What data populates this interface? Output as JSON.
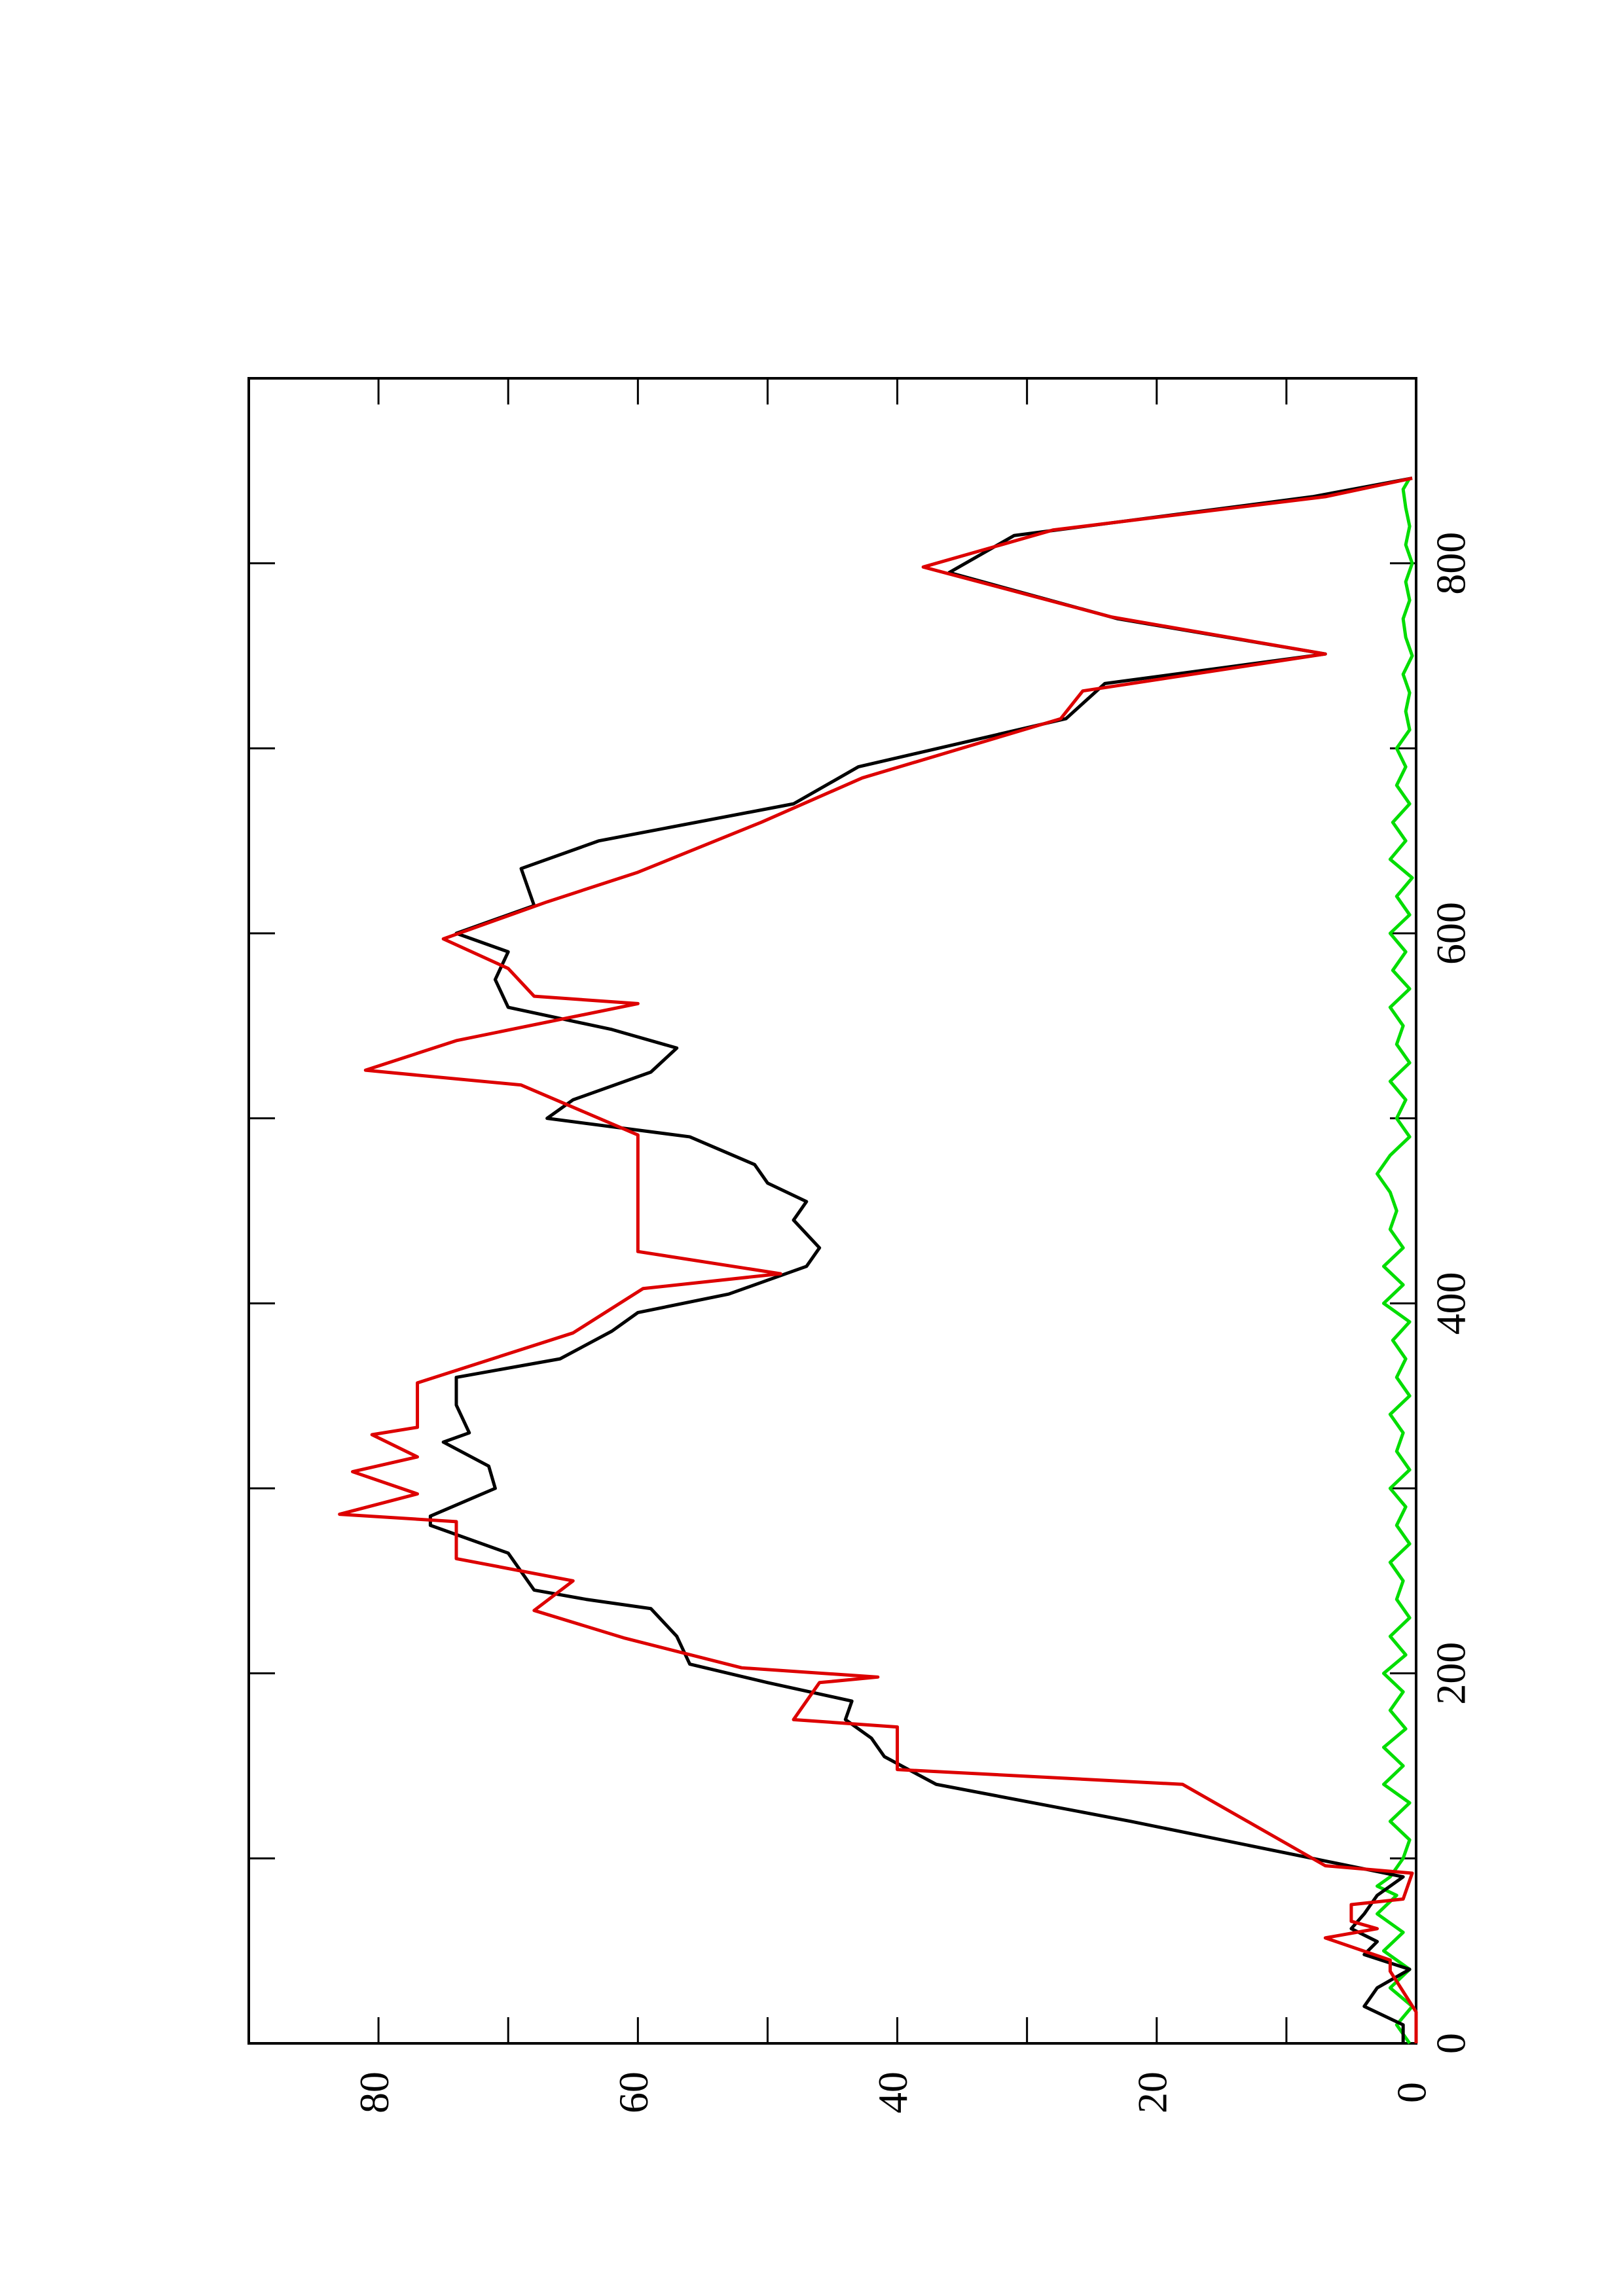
{
  "chart_data": {
    "type": "line",
    "orientation": "rotated",
    "xlim": [
      0,
      900
    ],
    "xticks": [
      0,
      200,
      400,
      600,
      800
    ],
    "xticks_minor": [
      100,
      300,
      500,
      700
    ],
    "ylim": [
      0,
      90
    ],
    "yticks": [
      0,
      20,
      40,
      60,
      80
    ],
    "yticks_minor": [
      10,
      30,
      50,
      70
    ],
    "series": [
      {
        "color": "#00dd00",
        "x": [
          0,
          10,
          20,
          30,
          40,
          50,
          60,
          70,
          80,
          85,
          90,
          100,
          110,
          120,
          130,
          140,
          150,
          160,
          170,
          180,
          190,
          200,
          210,
          220,
          230,
          240,
          250,
          260,
          270,
          280,
          290,
          300,
          310,
          320,
          330,
          340,
          350,
          360,
          370,
          380,
          390,
          400,
          410,
          420,
          430,
          440,
          450,
          460,
          470,
          480,
          490,
          500,
          510,
          520,
          530,
          540,
          550,
          560,
          570,
          580,
          590,
          600,
          610,
          620,
          630,
          640,
          650,
          660,
          670,
          680,
          690,
          700,
          710,
          720,
          730,
          740,
          750,
          760,
          770,
          780,
          790,
          800,
          810,
          820,
          830,
          840,
          846
        ],
        "values": [
          0.5,
          1.5,
          0.3,
          2,
          0.5,
          2.5,
          1,
          3,
          1.5,
          3,
          2,
          1,
          0.5,
          2,
          0.5,
          2.5,
          1,
          2.5,
          0.8,
          2,
          1,
          2.5,
          0.8,
          2,
          0.5,
          1.5,
          1,
          2,
          0.5,
          1.5,
          0.8,
          2,
          0.5,
          1.5,
          1,
          2,
          0.5,
          1.5,
          0.8,
          1.8,
          0.5,
          2.5,
          1,
          2.5,
          1,
          2,
          1.5,
          2,
          3,
          2,
          0.5,
          1.5,
          0.8,
          2,
          0.5,
          1.5,
          1,
          2,
          0.5,
          1.8,
          0.8,
          2,
          0.5,
          1.5,
          0.3,
          2,
          0.8,
          1.8,
          0.5,
          1.5,
          0.8,
          1.5,
          0.5,
          0.8,
          0.5,
          1,
          0.3,
          0.8,
          1,
          0.5,
          0.8,
          0.3,
          0.8,
          0.5,
          0.8,
          1,
          0.5
        ]
      },
      {
        "color": "#000000",
        "x": [
          0,
          10,
          20,
          30,
          40,
          48,
          55,
          62,
          70,
          80,
          90,
          100,
          120,
          140,
          155,
          165,
          175,
          185,
          195,
          205,
          220,
          235,
          240,
          245,
          265,
          280,
          285,
          300,
          312,
          325,
          330,
          345,
          360,
          370,
          385,
          395,
          405,
          420,
          430,
          445,
          455,
          465,
          475,
          490,
          500,
          510,
          525,
          538,
          548,
          560,
          575,
          590,
          600,
          615,
          635,
          650,
          670,
          690,
          716,
          735,
          751,
          770,
          795,
          815,
          836,
          846
        ],
        "values": [
          1,
          1,
          4,
          3,
          0.5,
          4,
          3,
          5,
          4,
          3,
          1,
          8,
          22,
          37,
          41,
          42,
          44,
          43.5,
          50,
          56,
          57,
          59,
          64,
          68,
          70,
          76,
          76,
          71,
          71.5,
          75,
          73,
          74,
          74,
          66,
          62,
          60,
          53,
          47,
          46,
          48,
          47,
          50,
          51,
          56,
          67,
          65,
          59,
          57,
          62,
          70,
          71,
          70,
          74,
          68,
          69,
          63,
          48,
          43,
          27,
          24,
          7,
          23,
          36,
          31,
          8,
          0.3
        ]
      },
      {
        "color": "#dd0000",
        "x": [
          0,
          17,
          39,
          45,
          57,
          62,
          66,
          75,
          78,
          88,
          92,
          96,
          140,
          148,
          171,
          175,
          195,
          198,
          203,
          219,
          234,
          250,
          262,
          282,
          286,
          297,
          309,
          317,
          329,
          333,
          357,
          384,
          408,
          416,
          428,
          491,
          518,
          526,
          542,
          562,
          566,
          581,
          597,
          617,
          633,
          660,
          684,
          716,
          731,
          751,
          771,
          798,
          818,
          836,
          846
        ],
        "values": [
          0,
          0,
          2,
          2,
          7,
          3,
          5,
          5,
          1,
          0.5,
          0.3,
          7,
          18,
          40,
          40,
          48,
          46,
          41.5,
          52,
          61,
          68,
          65,
          74,
          74,
          83,
          77,
          82,
          77,
          80.5,
          77,
          77,
          65,
          59.6,
          49,
          60,
          60,
          69,
          81,
          74,
          60,
          68,
          70,
          75,
          67,
          60,
          50.5,
          42.7,
          27.4,
          25.7,
          7,
          23.5,
          38,
          28,
          7,
          0.3
        ]
      }
    ]
  }
}
